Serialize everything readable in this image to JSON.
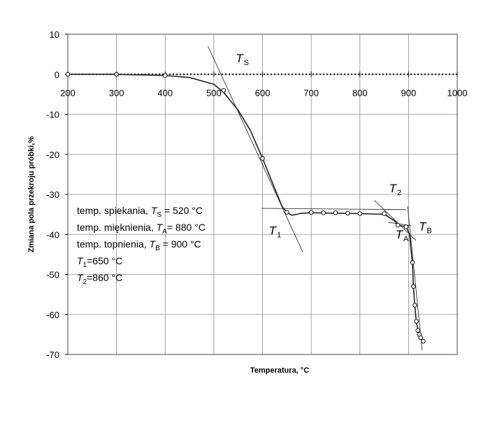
{
  "chart_data": {
    "type": "line",
    "title": "",
    "xlabel": "Temperatura, °C",
    "ylabel": "Zmiana pola przekroju próbki,%",
    "xlim": [
      200,
      1000
    ],
    "ylim": [
      -70,
      10
    ],
    "grid": true,
    "x_ticks": [
      "200",
      "300",
      "400",
      "500",
      "600",
      "700",
      "800",
      "900",
      "1000"
    ],
    "y_ticks": [
      "10",
      "0",
      "-10",
      "-20",
      "-30",
      "-40",
      "-50",
      "-60",
      "-70"
    ],
    "series": [
      {
        "curve": [
          [
            200,
            0
          ],
          [
            300,
            0
          ],
          [
            400,
            -0.3
          ],
          [
            450,
            -0.8
          ],
          [
            500,
            -2.5
          ],
          [
            520,
            -4.5
          ],
          [
            550,
            -9
          ],
          [
            575,
            -14
          ],
          [
            600,
            -21
          ],
          [
            620,
            -27
          ],
          [
            640,
            -33
          ],
          [
            650,
            -34.5
          ],
          [
            660,
            -35.2
          ],
          [
            670,
            -35.0
          ],
          [
            680,
            -34.7
          ],
          [
            700,
            -34.6
          ],
          [
            750,
            -34.7
          ],
          [
            800,
            -34.8
          ],
          [
            850,
            -35.0
          ],
          [
            870,
            -36.5
          ],
          [
            880,
            -37.8
          ],
          [
            895,
            -38.0
          ],
          [
            902,
            -40
          ],
          [
            905,
            -44
          ],
          [
            908,
            -47
          ],
          [
            910,
            -53
          ],
          [
            913,
            -58
          ],
          [
            916,
            -62
          ],
          [
            920,
            -64
          ],
          [
            925,
            -65.6
          ],
          [
            930,
            -66.7
          ]
        ],
        "markers": [
          [
            200,
            0
          ],
          [
            300,
            0
          ],
          [
            400,
            -0.3
          ],
          [
            520,
            -4
          ],
          [
            600,
            -21
          ],
          [
            650,
            -34.5
          ],
          [
            700,
            -34.5
          ],
          [
            725,
            -34.6
          ],
          [
            750,
            -34.6
          ],
          [
            775,
            -34.7
          ],
          [
            800,
            -34.8
          ],
          [
            850,
            -34.8
          ],
          [
            878,
            -37.7
          ],
          [
            895,
            -38.1
          ],
          [
            908,
            -47
          ],
          [
            910,
            -53
          ],
          [
            913,
            -57.7
          ],
          [
            916,
            -61.7
          ],
          [
            919,
            -64
          ],
          [
            922,
            -65
          ],
          [
            925,
            -65.8
          ],
          [
            930,
            -66.7
          ]
        ]
      }
    ],
    "tangent_lines": [
      [
        [
          488,
          7
        ],
        [
          683,
          -44.5
        ]
      ],
      [
        [
          598,
          -33.5
        ],
        [
          895,
          -33.8
        ]
      ],
      [
        [
          830,
          -31.5
        ],
        [
          915,
          -41.5
        ]
      ],
      [
        [
          858,
          -37
        ],
        [
          905,
          -37.8
        ]
      ],
      [
        [
          898,
          -33
        ],
        [
          928,
          -69
        ]
      ]
    ],
    "annotations": [
      {
        "name": "T-S",
        "main": "T",
        "sub": "S",
        "at": [
          545,
          3
        ]
      },
      {
        "name": "T-1",
        "main": "T",
        "sub": "1",
        "at": [
          613,
          -40
        ]
      },
      {
        "name": "T-2",
        "main": "T",
        "sub": "2",
        "at": [
          860,
          -29.5
        ]
      },
      {
        "name": "T-A",
        "main": "T",
        "sub": "A",
        "at": [
          873,
          -41
        ]
      },
      {
        "name": "T-B",
        "main": "T",
        "sub": "B",
        "at": [
          921,
          -39
        ]
      }
    ],
    "legend_placement": "bottom-left",
    "legend": [
      {
        "pre": "temp. spiekania, ",
        "sym": "T",
        "sub": "S",
        "post": " = 520 °C"
      },
      {
        "pre": "temp. mięknienia, ",
        "sym": "T",
        "sub": "A",
        "post": "= 880 °C"
      },
      {
        "pre": "temp. topnienia, ",
        "sym": "T",
        "sub": "B",
        "post": " = 900 °C"
      },
      {
        "pre": "",
        "sym": "T",
        "sub": "1",
        "post": "=650 °C"
      },
      {
        "pre": "",
        "sym": "T",
        "sub": "2",
        "post": "=860 °C"
      }
    ],
    "colors": {
      "line": "#222222",
      "grid": "#8a8a8a",
      "marker_fill": "#ffffff"
    }
  }
}
